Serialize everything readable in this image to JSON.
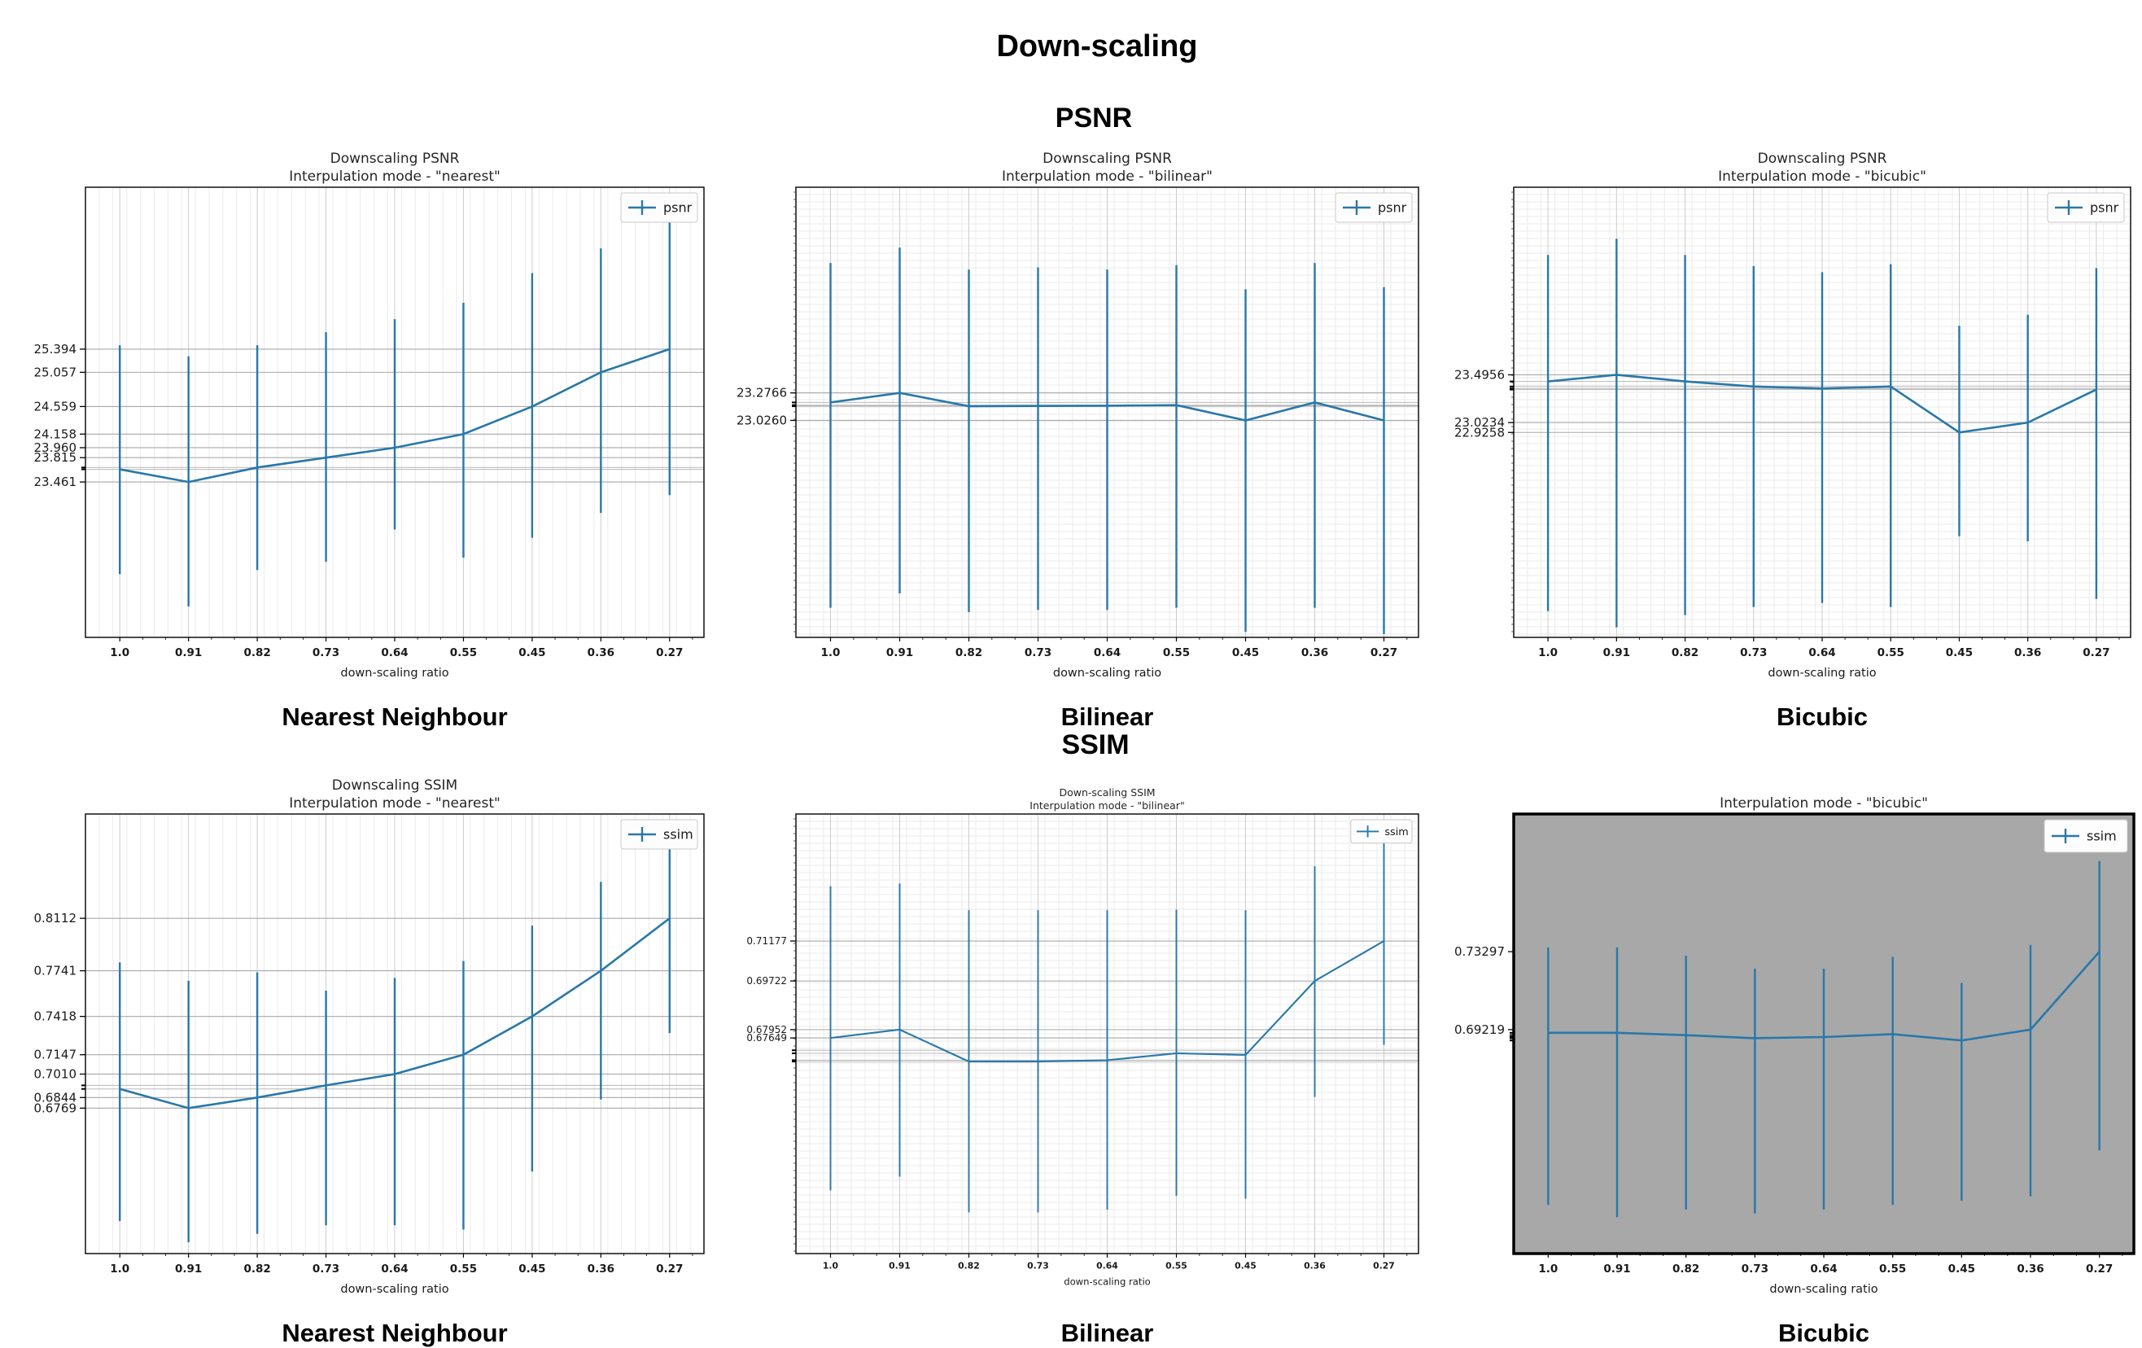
{
  "page": {
    "title": "Down-scaling",
    "section_psnr": "PSNR",
    "section_ssim": "SSIM"
  },
  "colors": {
    "line": "#2878a8",
    "grid_major": "#a8a8a8",
    "grid_extra": "#b8b8b8",
    "grid_minor": "#ebebeb",
    "axes_gray_bg": "#a8a8a8",
    "tick_text": "#1a1a1a",
    "title_text": "#262626"
  },
  "chart_data": [
    {
      "type": "line",
      "name": "psnr-nearest",
      "title": "Downscaling PSNR\nInterpulation mode - \"nearest\"",
      "legend_label": "psnr",
      "caption": "Nearest Neighbour",
      "xlabel": "down-scaling ratio",
      "categories": [
        "1.0",
        "0.91",
        "0.82",
        "0.73",
        "0.64",
        "0.55",
        "0.45",
        "0.36",
        "0.27"
      ],
      "values": [
        23.645,
        23.461,
        23.672,
        23.815,
        23.96,
        24.158,
        24.559,
        25.057,
        25.394
      ],
      "err_top": [
        25.45,
        25.29,
        25.45,
        25.64,
        25.83,
        26.07,
        26.5,
        26.86,
        27.49
      ],
      "err_bot": [
        22.12,
        21.65,
        22.18,
        22.3,
        22.77,
        22.36,
        22.65,
        23.01,
        23.27
      ],
      "yticks": [
        {
          "v": 25.394,
          "label": "25.394"
        },
        {
          "v": 25.057,
          "label": "25.057"
        },
        {
          "v": 24.559,
          "label": "24.559"
        },
        {
          "v": 24.158,
          "label": "24.158"
        },
        {
          "v": 23.96,
          "label": "23.960"
        },
        {
          "v": 23.815,
          "label": "23.815"
        },
        {
          "v": 23.461,
          "label": "23.461"
        }
      ],
      "extra_lines": [
        23.672,
        23.645
      ],
      "ylim": [
        21.2,
        27.75
      ],
      "mesh": false,
      "gray_bg": false,
      "small": false
    },
    {
      "type": "line",
      "name": "psnr-bilinear",
      "title": "Downscaling PSNR\nInterpulation mode - \"bilinear\"",
      "legend_label": "psnr",
      "caption": "Bilinear",
      "xlabel": "down-scaling ratio",
      "categories": [
        "1.0",
        "0.91",
        "0.82",
        "0.73",
        "0.64",
        "0.55",
        "0.45",
        "0.36",
        "0.27"
      ],
      "values": [
        23.19,
        23.2766,
        23.155,
        23.158,
        23.16,
        23.165,
        23.026,
        23.19,
        23.026
      ],
      "err_top": [
        24.46,
        24.6,
        24.4,
        24.42,
        24.4,
        24.44,
        24.22,
        24.46,
        24.24
      ],
      "err_bot": [
        21.32,
        21.45,
        21.28,
        21.3,
        21.3,
        21.32,
        21.1,
        21.32,
        21.08
      ],
      "yticks": [
        {
          "v": 23.2766,
          "label": "23.2766"
        },
        {
          "v": 23.026,
          "label": "23.0260"
        }
      ],
      "extra_lines": [
        23.19,
        23.165,
        23.16,
        23.155
      ],
      "ylim": [
        21.05,
        25.15
      ],
      "mesh": true,
      "gray_bg": false,
      "small": false
    },
    {
      "type": "line",
      "name": "psnr-bicubic",
      "title": "Downscaling PSNR\nInterpulation mode - \"bicubic\"",
      "legend_label": "psnr",
      "caption": "Bicubic",
      "xlabel": "down-scaling ratio",
      "categories": [
        "1.0",
        "0.91",
        "0.82",
        "0.73",
        "0.64",
        "0.55",
        "0.45",
        "0.36",
        "0.27"
      ],
      "values": [
        23.43,
        23.4956,
        23.43,
        23.38,
        23.36,
        23.38,
        22.9258,
        23.0234,
        23.35
      ],
      "err_top": [
        24.68,
        24.84,
        24.68,
        24.57,
        24.51,
        24.59,
        23.98,
        24.09,
        24.55
      ],
      "err_bot": [
        21.16,
        21.0,
        21.12,
        21.2,
        21.24,
        21.2,
        21.9,
        21.85,
        21.28
      ],
      "yticks": [
        {
          "v": 23.4956,
          "label": "23.4956"
        },
        {
          "v": 23.0234,
          "label": "23.0234"
        },
        {
          "v": 22.9258,
          "label": "22.9258"
        }
      ],
      "extra_lines": [
        23.43,
        23.38,
        23.36,
        23.35
      ],
      "ylim": [
        20.9,
        25.35
      ],
      "mesh": true,
      "gray_bg": false,
      "small": false
    },
    {
      "type": "line",
      "name": "ssim-nearest",
      "title": "Downscaling SSIM\nInterpulation mode - \"nearest\"",
      "legend_label": "ssim",
      "caption": "Nearest Neighbour",
      "xlabel": "down-scaling ratio",
      "categories": [
        "1.0",
        "0.91",
        "0.82",
        "0.73",
        "0.64",
        "0.55",
        "0.45",
        "0.36",
        "0.27"
      ],
      "values": [
        0.6905,
        0.6769,
        0.6844,
        0.693,
        0.701,
        0.7147,
        0.7418,
        0.7741,
        0.8112
      ],
      "err_top": [
        0.78,
        0.767,
        0.773,
        0.76,
        0.769,
        0.781,
        0.806,
        0.837,
        0.866
      ],
      "err_bot": [
        0.597,
        0.582,
        0.588,
        0.594,
        0.594,
        0.591,
        0.632,
        0.683,
        0.73
      ],
      "yticks": [
        {
          "v": 0.8112,
          "label": "0.8112"
        },
        {
          "v": 0.7741,
          "label": "0.7741"
        },
        {
          "v": 0.7418,
          "label": "0.7418"
        },
        {
          "v": 0.7147,
          "label": "0.7147"
        },
        {
          "v": 0.701,
          "label": "0.7010"
        },
        {
          "v": 0.6844,
          "label": "0.6844"
        },
        {
          "v": 0.6769,
          "label": "0.6769"
        }
      ],
      "extra_lines": [
        0.693,
        0.6905
      ],
      "ylim": [
        0.574,
        0.885
      ],
      "mesh": false,
      "gray_bg": false,
      "small": false
    },
    {
      "type": "line",
      "name": "ssim-bilinear",
      "title": "Down-scaling SSIM\nInterpulation mode - \"bilinear\"",
      "legend_label": "ssim",
      "caption": "Bilinear",
      "xlabel": "down-scaling ratio",
      "categories": [
        "1.0",
        "0.91",
        "0.82",
        "0.73",
        "0.64",
        "0.55",
        "0.45",
        "0.36",
        "0.27"
      ],
      "values": [
        0.67649,
        0.67952,
        0.6679,
        0.6679,
        0.6684,
        0.6709,
        0.6703,
        0.69722,
        0.71177
      ],
      "err_top": [
        0.7317,
        0.7327,
        0.723,
        0.723,
        0.723,
        0.7232,
        0.723,
        0.739,
        0.7495
      ],
      "err_bot": [
        0.621,
        0.626,
        0.613,
        0.613,
        0.614,
        0.619,
        0.618,
        0.655,
        0.674
      ],
      "yticks": [
        {
          "v": 0.71177,
          "label": "0.71177"
        },
        {
          "v": 0.69722,
          "label": "0.69722"
        },
        {
          "v": 0.67952,
          "label": "0.67952"
        },
        {
          "v": 0.67649,
          "label": "0.67649"
        }
      ],
      "extra_lines": [
        0.672,
        0.6709,
        0.6684,
        0.6679
      ],
      "ylim": [
        0.598,
        0.758
      ],
      "mesh": true,
      "gray_bg": false,
      "small": true
    },
    {
      "type": "line",
      "name": "ssim-bicubic",
      "title": "Interpulation mode - \"bicubic\"",
      "legend_label": "ssim",
      "caption": "Bicubic",
      "xlabel": "down-scaling ratio",
      "categories": [
        "1.0",
        "0.91",
        "0.82",
        "0.73",
        "0.64",
        "0.55",
        "0.45",
        "0.36",
        "0.27"
      ],
      "values": [
        0.6905,
        0.6905,
        0.6893,
        0.6877,
        0.6883,
        0.6898,
        0.6865,
        0.69219,
        0.73297
      ],
      "err_top": [
        0.7352,
        0.7352,
        0.7308,
        0.7241,
        0.7241,
        0.7303,
        0.7166,
        0.7365,
        0.7804
      ],
      "err_bot": [
        0.6005,
        0.594,
        0.598,
        0.596,
        0.598,
        0.6005,
        0.6027,
        0.605,
        0.629
      ],
      "yticks": [
        {
          "v": 0.73297,
          "label": "0.73297"
        },
        {
          "v": 0.69219,
          "label": "0.69219"
        }
      ],
      "extra_lines": [
        0.6905,
        0.6893,
        0.6883,
        0.6877,
        0.6865
      ],
      "ylim": [
        0.575,
        0.805
      ],
      "mesh": false,
      "gray_bg": true,
      "small": false
    }
  ]
}
